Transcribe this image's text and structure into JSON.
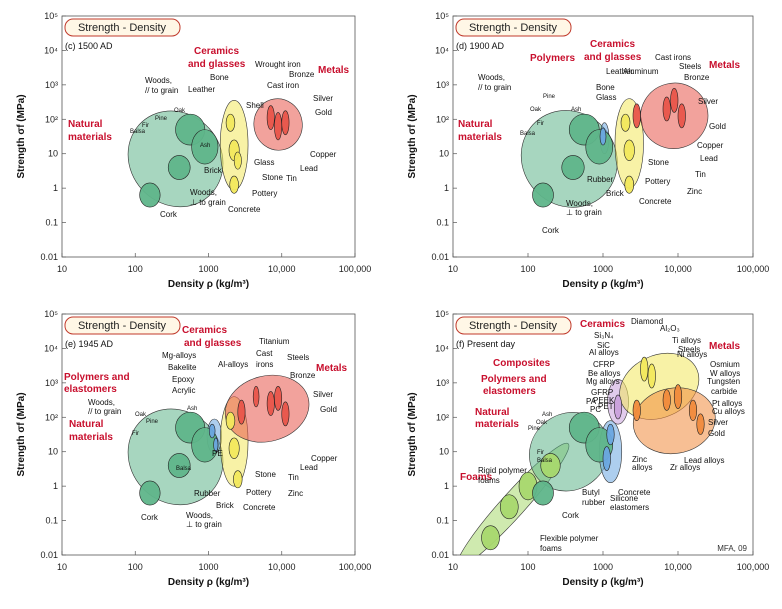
{
  "chart_data": [
    {
      "type": "scatter",
      "title": "Strength - Density",
      "era": "(c) 1500 AD",
      "xlabel": "Density ρ (kg/m³)",
      "ylabel": "Strength σf (MPa)",
      "xscale": "log",
      "yscale": "log",
      "xlim": [
        10,
        100000
      ],
      "ylim": [
        0.01,
        100000
      ],
      "x_ticks": [
        "10",
        "100",
        "1000",
        "10,000",
        "100,000"
      ],
      "y_ticks": [
        "0.01",
        "0.1",
        "1",
        "10",
        "10²",
        "10³",
        "10⁴",
        "10⁵"
      ],
      "groups": [
        {
          "name": "Natural materials",
          "color": "#5fb58a",
          "density": [
            80,
            1300
          ],
          "strength": [
            0.3,
            200
          ]
        },
        {
          "name": "Ceramics and glasses",
          "color": "#f2e85c",
          "density": [
            1500,
            3500
          ],
          "strength": [
            0.5,
            400
          ]
        },
        {
          "name": "Metals",
          "color": "#e8554a",
          "density": [
            6000,
            20000
          ],
          "strength": [
            5,
            500
          ]
        }
      ],
      "labels": [
        "Woods, // to grain",
        "Leather",
        "Oak",
        "Pine",
        "Fir",
        "Balsa",
        "Ash",
        "Cork",
        "Woods, ⊥ to grain",
        "Bone",
        "Shell",
        "Glass",
        "Brick",
        "Stone",
        "Pottery",
        "Concrete",
        "Wrought iron",
        "Cast iron",
        "Bronze",
        "Silver",
        "Gold",
        "Copper",
        "Lead",
        "Tin"
      ]
    },
    {
      "type": "scatter",
      "title": "Strength - Density",
      "era": "(d) 1900 AD",
      "xlabel": "Density ρ (kg/m³)",
      "ylabel": "Strength σf (MPa)",
      "xscale": "log",
      "yscale": "log",
      "xlim": [
        10,
        100000
      ],
      "ylim": [
        0.01,
        100000
      ],
      "x_ticks": [
        "10",
        "100",
        "1000",
        "10,000",
        "100,000"
      ],
      "y_ticks": [
        "0.01",
        "0.1",
        "1",
        "10",
        "10²",
        "10³",
        "10⁴",
        "10⁵"
      ],
      "groups": [
        {
          "name": "Natural materials",
          "color": "#5fb58a",
          "density": [
            80,
            1300
          ],
          "strength": [
            0.3,
            200
          ]
        },
        {
          "name": "Polymers",
          "color": "#6aa6e0",
          "density": [
            900,
            1300
          ],
          "strength": [
            10,
            80
          ]
        },
        {
          "name": "Ceramics and glasses",
          "color": "#f2e85c",
          "density": [
            1500,
            3500
          ],
          "strength": [
            0.5,
            600
          ]
        },
        {
          "name": "Metals",
          "color": "#e8554a",
          "density": [
            2600,
            20000
          ],
          "strength": [
            5,
            1500
          ]
        }
      ],
      "labels": [
        "Woods, // to grain",
        "Leather",
        "Oak",
        "Pine",
        "Fir",
        "Balsa",
        "Ash",
        "Cork",
        "Woods, ⊥ to grain",
        "Bone",
        "Glass",
        "Rubber",
        "Brick",
        "Stone",
        "Pottery",
        "Concrete",
        "Aluminum",
        "Cast irons",
        "Steels",
        "Bronze",
        "Silver",
        "Gold",
        "Copper",
        "Lead",
        "Tin",
        "Zinc"
      ]
    },
    {
      "type": "scatter",
      "title": "Strength - Density",
      "era": "(e) 1945 AD",
      "xlabel": "Density ρ (kg/m³)",
      "ylabel": "Strength σf (MPa)",
      "xscale": "log",
      "yscale": "log",
      "xlim": [
        10,
        100000
      ],
      "ylim": [
        0.01,
        100000
      ],
      "x_ticks": [
        "10",
        "100",
        "1000",
        "10,000",
        "100,000"
      ],
      "y_ticks": [
        "0.01",
        "0.1",
        "1",
        "10",
        "10²",
        "10³",
        "10⁴",
        "10⁵"
      ],
      "groups": [
        {
          "name": "Natural materials",
          "color": "#5fb58a",
          "density": [
            80,
            1300
          ],
          "strength": [
            0.3,
            200
          ]
        },
        {
          "name": "Polymers and elastomers",
          "color": "#6aa6e0",
          "density": [
            900,
            1500
          ],
          "strength": [
            8,
            120
          ]
        },
        {
          "name": "Ceramics and glasses",
          "color": "#f2e85c",
          "density": [
            1500,
            3500
          ],
          "strength": [
            0.5,
            600
          ]
        },
        {
          "name": "Metals",
          "color": "#e8554a",
          "density": [
            1700,
            20000
          ],
          "strength": [
            5,
            2000
          ]
        }
      ],
      "labels": [
        "Woods, // to grain",
        "Oak",
        "Pine",
        "Fir",
        "Balsa",
        "Ash",
        "Cork",
        "Woods, ⊥ to grain",
        "Mg-alloys",
        "Bakelite",
        "Epoxy",
        "Acrylic",
        "PE",
        "Rubber",
        "Brick",
        "Al-alloys",
        "Titanium",
        "Cast irons",
        "Steels",
        "Bronze",
        "Silver",
        "Gold",
        "Copper",
        "Lead",
        "Tin",
        "Zinc",
        "Stone",
        "Pottery",
        "Concrete"
      ]
    },
    {
      "type": "scatter",
      "title": "Strength - Density",
      "era": "(f) Present day",
      "credit": "MFA, 09",
      "xlabel": "Density ρ (kg/m³)",
      "ylabel": "Strength σf (MPa)",
      "xscale": "log",
      "yscale": "log",
      "xlim": [
        10,
        100000
      ],
      "ylim": [
        0.01,
        100000
      ],
      "x_ticks": [
        "10",
        "100",
        "1000",
        "10,000",
        "100,000"
      ],
      "y_ticks": [
        "0.01",
        "0.1",
        "1",
        "10",
        "10²",
        "10³",
        "10⁴",
        "10⁵"
      ],
      "groups": [
        {
          "name": "Foams",
          "color": "#a8d86e",
          "density": [
            10,
            1000
          ],
          "strength": [
            0.01,
            10
          ]
        },
        {
          "name": "Natural materials",
          "color": "#5fb58a",
          "density": [
            80,
            1300
          ],
          "strength": [
            0.3,
            200
          ]
        },
        {
          "name": "Polymers and elastomers",
          "color": "#6aa6e0",
          "density": [
            900,
            2200
          ],
          "strength": [
            1,
            120
          ]
        },
        {
          "name": "Composites",
          "color": "#c9a0dc",
          "density": [
            1300,
            2200
          ],
          "strength": [
            50,
            1500
          ]
        },
        {
          "name": "Ceramics",
          "color": "#f2e85c",
          "density": [
            2200,
            16000
          ],
          "strength": [
            50,
            5000
          ]
        },
        {
          "name": "Metals",
          "color": "#f08a3c",
          "density": [
            1700,
            20000
          ],
          "strength": [
            5,
            3000
          ]
        }
      ],
      "labels": [
        "Diamond",
        "Al₂O₃",
        "Ti alloys",
        "Steels",
        "Ni alloys",
        "Si₃N₄",
        "SiC",
        "Al alloys",
        "CFRP",
        "Be alloys",
        "Mg alloys",
        "GFRP",
        "PEEK",
        "PA",
        "PC",
        "PET",
        "Osmium",
        "W alloys",
        "Tungsten carbide",
        "Pt alloys",
        "Cu alloys",
        "Silver",
        "Gold",
        "Lead alloys",
        "Zn alloys",
        "Zr alloys",
        "Concrete",
        "Silicone elastomers",
        "Butyl rubber",
        "Cork",
        "Rigid polymer foams",
        "Flexible polymer foams",
        "Oak",
        "Pine",
        "Ash",
        "Fir",
        "Balsa"
      ]
    }
  ]
}
